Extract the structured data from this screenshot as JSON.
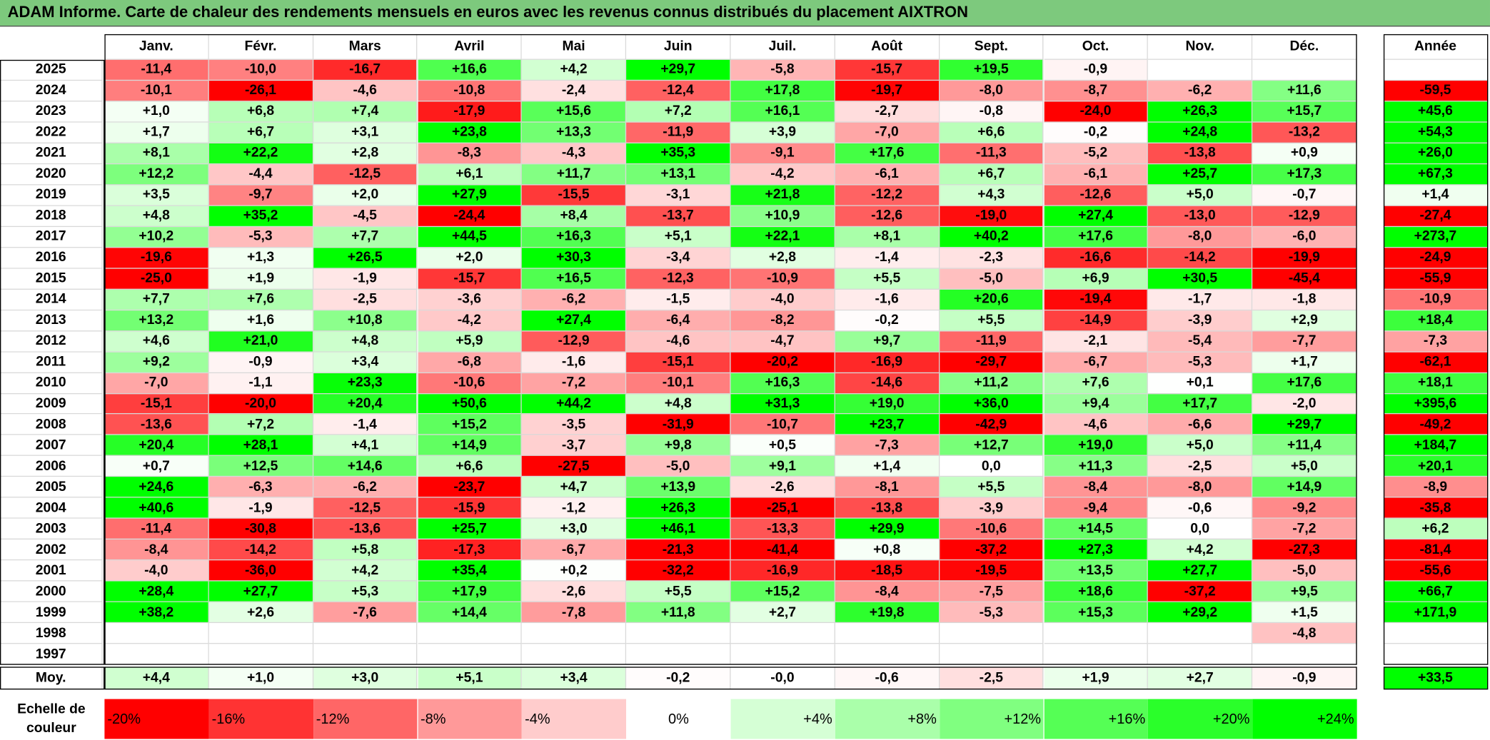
{
  "title": "ADAM Informe. Carte de chaleur des rendements mensuels en euros avec les revenus connus distribués du placement AIXTRON",
  "months": [
    "Janv.",
    "Févr.",
    "Mars",
    "Avril",
    "Mai",
    "Juin",
    "Juil.",
    "Août",
    "Sept.",
    "Oct.",
    "Nov.",
    "Déc."
  ],
  "annual_header": "Année",
  "rows": [
    {
      "year": "2025",
      "months": [
        "-11,4",
        "-10,0",
        "-16,7",
        "+16,6",
        "+4,2",
        "+29,7",
        "-5,8",
        "-15,7",
        "+19,5",
        "-0,9",
        null,
        null
      ],
      "annual": null
    },
    {
      "year": "2024",
      "months": [
        "-10,1",
        "-26,1",
        "-4,6",
        "-10,8",
        "-2,4",
        "-12,4",
        "+17,8",
        "-19,7",
        "-8,0",
        "-8,7",
        "-6,2",
        "+11,6"
      ],
      "annual": "-59,5"
    },
    {
      "year": "2023",
      "months": [
        "+1,0",
        "+6,8",
        "+7,4",
        "-17,9",
        "+15,6",
        "+7,2",
        "+16,1",
        "-2,7",
        "-0,8",
        "-24,0",
        "+26,3",
        "+15,7"
      ],
      "annual": "+45,6"
    },
    {
      "year": "2022",
      "months": [
        "+1,7",
        "+6,7",
        "+3,1",
        "+23,8",
        "+13,3",
        "-11,9",
        "+3,9",
        "-7,0",
        "+6,6",
        "-0,2",
        "+24,8",
        "-13,2"
      ],
      "annual": "+54,3"
    },
    {
      "year": "2021",
      "months": [
        "+8,1",
        "+22,2",
        "+2,8",
        "-8,3",
        "-4,3",
        "+35,3",
        "-9,1",
        "+17,6",
        "-11,3",
        "-5,2",
        "-13,8",
        "+0,9"
      ],
      "annual": "+26,0"
    },
    {
      "year": "2020",
      "months": [
        "+12,2",
        "-4,4",
        "-12,5",
        "+6,1",
        "+11,7",
        "+13,1",
        "-4,2",
        "-6,1",
        "+6,7",
        "-6,1",
        "+25,7",
        "+17,3"
      ],
      "annual": "+67,3"
    },
    {
      "year": "2019",
      "months": [
        "+3,5",
        "-9,7",
        "+2,0",
        "+27,9",
        "-15,5",
        "-3,1",
        "+21,8",
        "-12,2",
        "+4,3",
        "-12,6",
        "+5,0",
        "-0,7"
      ],
      "annual": "+1,4"
    },
    {
      "year": "2018",
      "months": [
        "+4,8",
        "+35,2",
        "-4,5",
        "-24,4",
        "+8,4",
        "-13,7",
        "+10,9",
        "-12,6",
        "-19,0",
        "+27,4",
        "-13,0",
        "-12,9"
      ],
      "annual": "-27,4"
    },
    {
      "year": "2017",
      "months": [
        "+10,2",
        "-5,3",
        "+7,7",
        "+44,5",
        "+16,3",
        "+5,1",
        "+22,1",
        "+8,1",
        "+40,2",
        "+17,6",
        "-8,0",
        "-6,0"
      ],
      "annual": "+273,7"
    },
    {
      "year": "2016",
      "months": [
        "-19,6",
        "+1,3",
        "+26,5",
        "+2,0",
        "+30,3",
        "-3,4",
        "+2,8",
        "-1,4",
        "-2,3",
        "-16,6",
        "-14,2",
        "-19,9"
      ],
      "annual": "-24,9"
    },
    {
      "year": "2015",
      "months": [
        "-25,0",
        "+1,9",
        "-1,9",
        "-15,7",
        "+16,5",
        "-12,3",
        "-10,9",
        "+5,5",
        "-5,0",
        "+6,9",
        "+30,5",
        "-45,4"
      ],
      "annual": "-55,9"
    },
    {
      "year": "2014",
      "months": [
        "+7,7",
        "+7,6",
        "-2,5",
        "-3,6",
        "-6,2",
        "-1,5",
        "-4,0",
        "-1,6",
        "+20,6",
        "-19,4",
        "-1,7",
        "-1,8"
      ],
      "annual": "-10,9"
    },
    {
      "year": "2013",
      "months": [
        "+13,2",
        "+1,6",
        "+10,8",
        "-4,2",
        "+27,4",
        "-6,4",
        "-8,2",
        "-0,2",
        "+5,5",
        "-14,9",
        "-3,9",
        "+2,9"
      ],
      "annual": "+18,4"
    },
    {
      "year": "2012",
      "months": [
        "+4,6",
        "+21,0",
        "+4,8",
        "+5,9",
        "-12,9",
        "-4,6",
        "-4,7",
        "+9,7",
        "-11,9",
        "-2,1",
        "-5,4",
        "-7,7"
      ],
      "annual": "-7,3"
    },
    {
      "year": "2011",
      "months": [
        "+9,2",
        "-0,9",
        "+3,4",
        "-6,8",
        "-1,6",
        "-15,1",
        "-20,2",
        "-16,9",
        "-29,7",
        "-6,7",
        "-5,3",
        "+1,7"
      ],
      "annual": "-62,1"
    },
    {
      "year": "2010",
      "months": [
        "-7,0",
        "-1,1",
        "+23,3",
        "-10,6",
        "-7,2",
        "-10,1",
        "+16,3",
        "-14,6",
        "+11,2",
        "+7,6",
        "+0,1",
        "+17,6"
      ],
      "annual": "+18,1"
    },
    {
      "year": "2009",
      "months": [
        "-15,1",
        "-20,0",
        "+20,4",
        "+50,6",
        "+44,2",
        "+4,8",
        "+31,3",
        "+19,0",
        "+36,0",
        "+9,4",
        "+17,7",
        "-2,0"
      ],
      "annual": "+395,6"
    },
    {
      "year": "2008",
      "months": [
        "-13,6",
        "+7,2",
        "-1,4",
        "+15,2",
        "-3,5",
        "-31,9",
        "-10,7",
        "+23,7",
        "-42,9",
        "-4,6",
        "-6,6",
        "+29,7"
      ],
      "annual": "-49,2"
    },
    {
      "year": "2007",
      "months": [
        "+20,4",
        "+28,1",
        "+4,1",
        "+14,9",
        "-3,7",
        "+9,8",
        "+0,5",
        "-7,3",
        "+12,7",
        "+19,0",
        "+5,0",
        "+11,4"
      ],
      "annual": "+184,7"
    },
    {
      "year": "2006",
      "months": [
        "+0,7",
        "+12,5",
        "+14,6",
        "+6,6",
        "-27,5",
        "-5,0",
        "+9,1",
        "+1,4",
        "0,0",
        "+11,3",
        "-2,5",
        "+5,0"
      ],
      "annual": "+20,1"
    },
    {
      "year": "2005",
      "months": [
        "+24,6",
        "-6,3",
        "-6,2",
        "-23,7",
        "+4,7",
        "+13,9",
        "-2,6",
        "-8,1",
        "+5,5",
        "-8,4",
        "-8,0",
        "+14,9"
      ],
      "annual": "-8,9"
    },
    {
      "year": "2004",
      "months": [
        "+40,6",
        "-1,9",
        "-12,5",
        "-15,9",
        "-1,2",
        "+26,3",
        "-25,1",
        "-13,8",
        "-3,9",
        "-9,4",
        "-0,6",
        "-9,2"
      ],
      "annual": "-35,8"
    },
    {
      "year": "2003",
      "months": [
        "-11,4",
        "-30,8",
        "-13,6",
        "+25,7",
        "+3,0",
        "+46,1",
        "-13,3",
        "+29,9",
        "-10,6",
        "+14,5",
        "0,0",
        "-7,2"
      ],
      "annual": "+6,2"
    },
    {
      "year": "2002",
      "months": [
        "-8,4",
        "-14,2",
        "+5,8",
        "-17,3",
        "-6,7",
        "-21,3",
        "-41,4",
        "+0,8",
        "-37,2",
        "+27,3",
        "+4,2",
        "-27,3"
      ],
      "annual": "-81,4"
    },
    {
      "year": "2001",
      "months": [
        "-4,0",
        "-36,0",
        "+4,2",
        "+35,4",
        "+0,2",
        "-32,2",
        "-16,9",
        "-18,5",
        "-19,5",
        "+13,5",
        "+27,7",
        "-5,0"
      ],
      "annual": "-55,6"
    },
    {
      "year": "2000",
      "months": [
        "+28,4",
        "+27,7",
        "+5,3",
        "+17,9",
        "-2,6",
        "+5,5",
        "+15,2",
        "-8,4",
        "-7,5",
        "+18,6",
        "-37,2",
        "+9,5"
      ],
      "annual": "+66,7"
    },
    {
      "year": "1999",
      "months": [
        "+38,2",
        "+2,6",
        "-7,6",
        "+14,4",
        "-7,8",
        "+11,8",
        "+2,7",
        "+19,8",
        "-5,3",
        "+15,3",
        "+29,2",
        "+1,5"
      ],
      "annual": "+171,9"
    },
    {
      "year": "1998",
      "months": [
        null,
        null,
        null,
        null,
        null,
        null,
        null,
        null,
        null,
        null,
        null,
        "-4,8"
      ],
      "annual": null
    },
    {
      "year": "1997",
      "months": [
        null,
        null,
        null,
        null,
        null,
        null,
        null,
        null,
        null,
        null,
        null,
        null
      ],
      "annual": null
    }
  ],
  "average": {
    "label": "Moy.",
    "months": [
      "+4,4",
      "+1,0",
      "+3,0",
      "+5,1",
      "+3,4",
      "-0,2",
      "-0,0",
      "-0,6",
      "-2,5",
      "+1,9",
      "+2,7",
      "-0,9"
    ],
    "annual": "+33,5"
  },
  "scale": {
    "label": "Echelle de couleur",
    "steps": [
      "-20%",
      "-16%",
      "-12%",
      "-8%",
      "-4%",
      "0%",
      "+4%",
      "+8%",
      "+12%",
      "+16%",
      "+20%",
      "+24%"
    ]
  }
}
